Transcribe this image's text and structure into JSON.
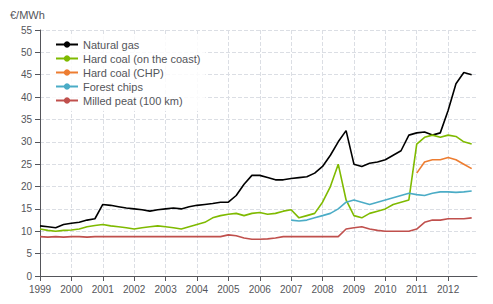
{
  "chart_data": {
    "type": "line",
    "title": "",
    "ylabel": "€/MWh",
    "x": [
      1999.0,
      1999.25,
      1999.5,
      1999.75,
      2000.0,
      2000.25,
      2000.5,
      2000.75,
      2001.0,
      2001.25,
      2001.5,
      2001.75,
      2002.0,
      2002.25,
      2002.5,
      2002.75,
      2003.0,
      2003.25,
      2003.5,
      2003.75,
      2004.0,
      2004.25,
      2004.5,
      2004.75,
      2005.0,
      2005.25,
      2005.5,
      2005.75,
      2006.0,
      2006.25,
      2006.5,
      2006.75,
      2007.0,
      2007.25,
      2007.5,
      2007.75,
      2008.0,
      2008.25,
      2008.5,
      2008.75,
      2009.0,
      2009.25,
      2009.5,
      2009.75,
      2010.0,
      2010.25,
      2010.5,
      2010.75,
      2011.0,
      2011.25,
      2011.5,
      2011.75,
      2012.0,
      2012.25,
      2012.5,
      2012.75
    ],
    "series": [
      {
        "name": "Natural gas",
        "color": "#000000",
        "values": [
          11.2,
          11.0,
          10.8,
          11.5,
          11.8,
          12.0,
          12.5,
          12.8,
          16.0,
          15.8,
          15.5,
          15.2,
          15.0,
          14.8,
          14.5,
          14.8,
          15.0,
          15.2,
          15.0,
          15.5,
          15.8,
          16.0,
          16.2,
          16.5,
          16.5,
          18.0,
          20.5,
          22.5,
          22.5,
          22.0,
          21.5,
          21.5,
          21.8,
          22.0,
          22.2,
          23.0,
          24.5,
          27.0,
          30.0,
          32.5,
          25.0,
          24.5,
          25.2,
          25.5,
          26.0,
          27.0,
          28.0,
          31.5,
          32.0,
          32.2,
          31.5,
          32.0,
          37.0,
          43.0,
          45.5,
          45.0
        ]
      },
      {
        "name": "Hard coal (on the coast)",
        "color": "#7fba00",
        "values": [
          10.5,
          10.2,
          10.0,
          10.2,
          10.3,
          10.5,
          11.0,
          11.3,
          11.5,
          11.2,
          11.0,
          10.8,
          10.5,
          10.8,
          11.0,
          11.2,
          11.0,
          10.8,
          10.5,
          11.0,
          11.5,
          12.0,
          13.0,
          13.5,
          13.8,
          14.0,
          13.5,
          14.0,
          14.2,
          13.8,
          14.0,
          14.5,
          14.8,
          13.0,
          13.5,
          14.0,
          16.5,
          20.0,
          25.0,
          17.0,
          13.5,
          13.0,
          14.0,
          14.5,
          15.0,
          16.0,
          16.5,
          17.0,
          29.5,
          31.0,
          31.5,
          31.0,
          31.5,
          31.2,
          30.0,
          29.5
        ]
      },
      {
        "name": "Hard coal (CHP)",
        "color": "#ed7d31",
        "values": [
          null,
          null,
          null,
          null,
          null,
          null,
          null,
          null,
          null,
          null,
          null,
          null,
          null,
          null,
          null,
          null,
          null,
          null,
          null,
          null,
          null,
          null,
          null,
          null,
          null,
          null,
          null,
          null,
          null,
          null,
          null,
          null,
          null,
          null,
          null,
          null,
          null,
          null,
          null,
          null,
          null,
          null,
          null,
          null,
          null,
          null,
          null,
          null,
          23.0,
          25.5,
          26.0,
          26.0,
          26.5,
          26.0,
          25.0,
          24.0
        ]
      },
      {
        "name": "Forest chips",
        "color": "#4bacc6",
        "values": [
          null,
          null,
          null,
          null,
          null,
          null,
          null,
          null,
          null,
          null,
          null,
          null,
          null,
          null,
          null,
          null,
          null,
          null,
          null,
          null,
          null,
          null,
          null,
          null,
          null,
          null,
          null,
          null,
          null,
          null,
          null,
          null,
          12.5,
          12.3,
          12.5,
          13.0,
          13.5,
          14.0,
          15.0,
          16.5,
          17.0,
          16.5,
          16.0,
          16.5,
          17.0,
          17.5,
          18.0,
          18.5,
          18.2,
          18.0,
          18.5,
          18.8,
          18.8,
          18.7,
          18.8,
          19.0
        ]
      },
      {
        "name": "Milled peat (100 km)",
        "color": "#c0504d",
        "values": [
          8.8,
          8.7,
          8.8,
          8.7,
          8.8,
          8.8,
          8.7,
          8.8,
          8.8,
          8.8,
          8.8,
          8.8,
          8.8,
          8.8,
          8.8,
          8.8,
          8.8,
          8.8,
          8.8,
          8.8,
          8.8,
          8.8,
          8.8,
          8.8,
          9.2,
          9.0,
          8.5,
          8.2,
          8.2,
          8.3,
          8.5,
          8.8,
          8.8,
          8.8,
          8.8,
          8.8,
          8.8,
          8.8,
          8.8,
          10.5,
          10.8,
          11.0,
          10.5,
          10.2,
          10.0,
          10.0,
          10.0,
          10.0,
          10.5,
          12.0,
          12.5,
          12.5,
          12.8,
          12.8,
          12.8,
          13.0
        ]
      }
    ],
    "xlim": [
      1999.0,
      2012.92
    ],
    "xticks": [
      1999,
      2000,
      2001,
      2002,
      2003,
      2004,
      2005,
      2006,
      2007,
      2008,
      2009,
      2010,
      2011,
      2012
    ],
    "ylim": [
      0,
      55
    ],
    "yticks": [
      0,
      5,
      10,
      15,
      20,
      25,
      30,
      35,
      40,
      45,
      50,
      55
    ],
    "grid": true,
    "legend": "upper left"
  }
}
